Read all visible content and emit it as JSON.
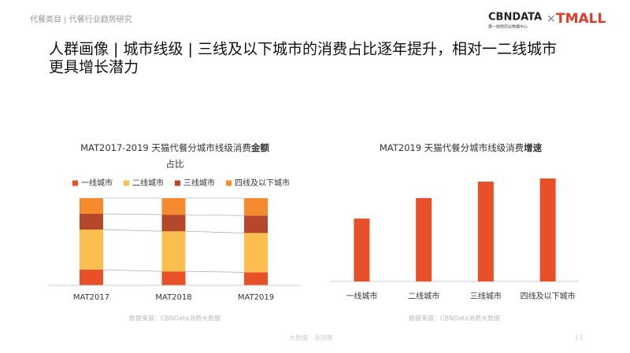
{
  "header": {
    "breadcrumb": "代餐类目 | 代餐行业趋势研究",
    "logo_left": "CBNDATA",
    "logo_left_sub": "第一财经商业数据中心",
    "logo_sep": "×",
    "logo_right": "TMALL"
  },
  "title_line1": "人群画像 | 城市线级 | 三线及以下城市的消费占比逐年提升，相对一二线城市",
  "title_line2": "更具增长潜力",
  "chart_data": [
    {
      "type": "stacked_bar",
      "title": "MAT2017-2019 天猫代餐分城市线级消费",
      "title_bold": "金额",
      "title_suffix": "占比",
      "categories": [
        "MAT2017",
        "MAT2018",
        "MAT2019"
      ],
      "series": [
        {
          "name": "一线城市",
          "color": "#e8502a",
          "values": [
            18,
            16,
            15
          ]
        },
        {
          "name": "二线城市",
          "color": "#fbbf4f",
          "values": [
            46,
            46,
            45
          ]
        },
        {
          "name": "三线城市",
          "color": "#b5482a",
          "values": [
            18,
            19,
            20
          ]
        },
        {
          "name": "四线及以下城市",
          "color": "#f58a2e",
          "values": [
            18,
            19,
            20
          ]
        }
      ],
      "ylim": [
        0,
        100
      ],
      "source": "数据来源：CBNData消费大数据"
    },
    {
      "type": "bar",
      "title": "MAT2019 天猫代餐分城市线级消费",
      "title_bold": "增速",
      "categories": [
        "一线城市",
        "二线城市",
        "三线城市",
        "四线及以下城市"
      ],
      "values": [
        80,
        106,
        127,
        131
      ],
      "color": "#e8502a",
      "ylim": [
        0,
        140
      ],
      "source": "数据来源：CBNData消费大数据"
    }
  ],
  "footer": {
    "text": "大数据 · 全洞察",
    "page": "13"
  }
}
